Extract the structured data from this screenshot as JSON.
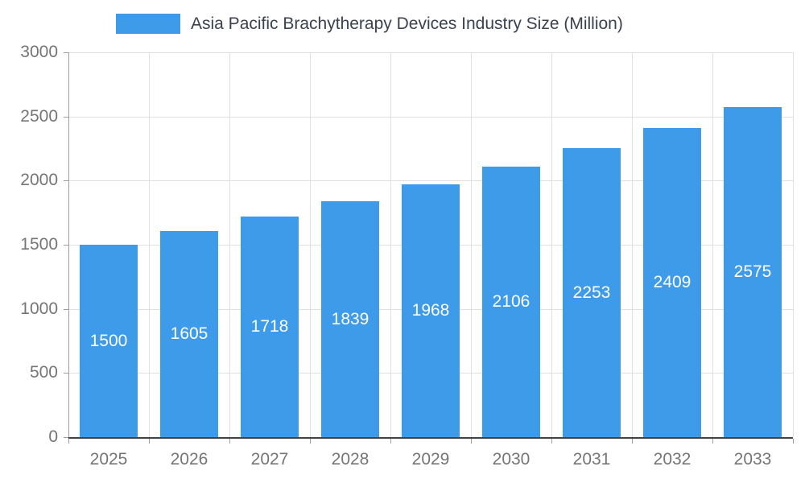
{
  "chart_data": {
    "type": "bar",
    "title": "Asia Pacific Brachytherapy Devices Industry Size (Million)",
    "categories": [
      "2025",
      "2026",
      "2027",
      "2028",
      "2029",
      "2030",
      "2031",
      "2032",
      "2033"
    ],
    "series": [
      {
        "name": "Asia Pacific Brachytherapy Devices Industry Size (Million)",
        "values": [
          1500,
          1605,
          1718,
          1839,
          1968,
          2106,
          2253,
          2409,
          2575
        ]
      }
    ],
    "xlabel": "",
    "ylabel": "",
    "ylim": [
      0,
      3000
    ],
    "y_ticks": [
      0,
      500,
      1000,
      1500,
      2000,
      2500,
      3000
    ],
    "grid": true,
    "legend_position": "top",
    "bar_labels": true,
    "bar_label_position": "center"
  },
  "colors": {
    "bar": "#3E9BEA",
    "grid": "#e0e0e0",
    "axis": "#9e9e9e",
    "axis_dark": "#424242",
    "axis_text": "#757575",
    "title_text": "#3c4150",
    "value_label": "#ffffff",
    "background": "#ffffff"
  }
}
